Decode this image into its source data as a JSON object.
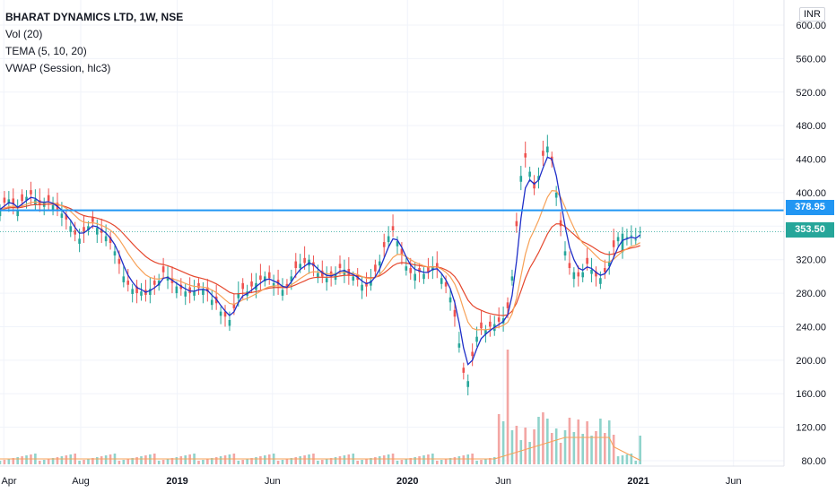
{
  "legend": {
    "title": "BHARAT DYNAMICS LTD, 1W, NSE",
    "indicators": [
      "Vol (20)",
      "TEMA (5, 10, 20)",
      "VWAP (Session, hlc3)"
    ]
  },
  "currency": "INR",
  "colors": {
    "up": "#26a69a",
    "down": "#ef5350",
    "vol_up": "#8fd3cb",
    "vol_down": "#f3a6a4",
    "tema": "#1f2fc8",
    "tema_slow": "#f7a157",
    "vwap": "#e5482e",
    "hline": "#2196f3",
    "close_line": "#26a69a"
  },
  "chart_data": {
    "type": "candlestick",
    "symbol": "BHARAT DYNAMICS LTD",
    "interval": "1W",
    "exchange": "NSE",
    "y_axis": {
      "ticks": [
        "80.00",
        "120.00",
        "160.00",
        "200.00",
        "240.00",
        "280.00",
        "320.00",
        "360.00",
        "400.00",
        "440.00",
        "480.00",
        "520.00",
        "560.00",
        "600.00"
      ],
      "ylim": [
        70,
        620
      ]
    },
    "x_axis": {
      "ticks": [
        {
          "label": "Apr",
          "date": "2018-04-01"
        },
        {
          "label": "Aug",
          "date": "2018-08-01"
        },
        {
          "label": "2019",
          "date": "2019-01-01",
          "bold": true
        },
        {
          "label": "Jun",
          "date": "2019-06-01"
        },
        {
          "label": "2020",
          "date": "2020-01-01",
          "bold": true
        },
        {
          "label": "Jun",
          "date": "2020-06-01"
        },
        {
          "label": "2021",
          "date": "2021-01-01",
          "bold": true
        },
        {
          "label": "Jun",
          "date": "2021-06-01"
        }
      ],
      "xlim": [
        "2018-03-26",
        "2021-08-20"
      ]
    },
    "horizontal_line": {
      "value": 378.95,
      "label": "378.95"
    },
    "last_close": {
      "value": 353.5,
      "label": "353.50"
    },
    "close_series": {
      "start_date": "2018-03-26",
      "interval_days": 7,
      "values": [
        380,
        388,
        392,
        386,
        378,
        390,
        395,
        398,
        392,
        385,
        388,
        390,
        385,
        380,
        375,
        368,
        360,
        350,
        345,
        352,
        360,
        365,
        358,
        352,
        348,
        340,
        330,
        315,
        300,
        290,
        285,
        280,
        282,
        278,
        285,
        290,
        295,
        305,
        300,
        292,
        288,
        285,
        282,
        280,
        282,
        286,
        285,
        282,
        272,
        268,
        258,
        252,
        248,
        262,
        280,
        285,
        282,
        288,
        292,
        296,
        300,
        298,
        292,
        290,
        284,
        286,
        300,
        310,
        315,
        316,
        320,
        312,
        304,
        300,
        298,
        300,
        304,
        310,
        308,
        302,
        300,
        296,
        290,
        288,
        295,
        306,
        318,
        335,
        348,
        355,
        342,
        326,
        312,
        304,
        303,
        305,
        303,
        305,
        312,
        310,
        298,
        288,
        275,
        252,
        220,
        185,
        175,
        205,
        228,
        238,
        236,
        240,
        243,
        246,
        250,
        262,
        300,
        360,
        420,
        442,
        425,
        405,
        420,
        444,
        455,
        438,
        400,
        360,
        330,
        310,
        305,
        300,
        305,
        315,
        308,
        300,
        298,
        305,
        318,
        335,
        347,
        351,
        347,
        349,
        344,
        353.5
      ],
      "open_offsets": [
        -8,
        6,
        -5,
        7,
        -6,
        8,
        -4,
        5,
        -7,
        6,
        -5,
        7,
        -6,
        8,
        -5,
        6,
        -7,
        5,
        -6,
        7,
        -5,
        6,
        -8,
        5,
        -6,
        7,
        -5,
        6,
        -7,
        5,
        -6,
        8,
        -5,
        6,
        -7,
        5,
        -6,
        7,
        -5,
        6,
        -8,
        5,
        -6,
        7,
        -5,
        6,
        -7,
        5,
        -6,
        8,
        -5,
        6,
        -7,
        5,
        -6,
        7,
        -5,
        6,
        -8,
        5,
        -6,
        7,
        -5,
        6,
        -7,
        5,
        -6,
        8,
        -5,
        6,
        -7,
        5,
        -6,
        7,
        -5,
        6,
        -8,
        5,
        -6,
        7,
        -5,
        6,
        -7,
        5,
        -6,
        8,
        -5,
        6,
        -7,
        5,
        -6,
        7,
        -5,
        6,
        -8,
        5,
        -6,
        7,
        -5,
        6,
        -7,
        5,
        -6,
        8,
        -5,
        6,
        -7,
        5,
        -6,
        7,
        -5,
        6,
        -8,
        5,
        -6,
        7,
        -5,
        6,
        -7,
        5,
        -6,
        8,
        -5,
        6,
        -7,
        5,
        -6,
        7,
        -5,
        6,
        -8,
        5,
        -6,
        7,
        -5,
        6,
        -7,
        5,
        -6,
        8,
        -5,
        -22
      ]
    },
    "indicators": [
      {
        "name": "Vol (20)"
      },
      {
        "name": "TEMA (5, 10, 20)"
      },
      {
        "name": "VWAP (Session, hlc3)"
      }
    ]
  }
}
